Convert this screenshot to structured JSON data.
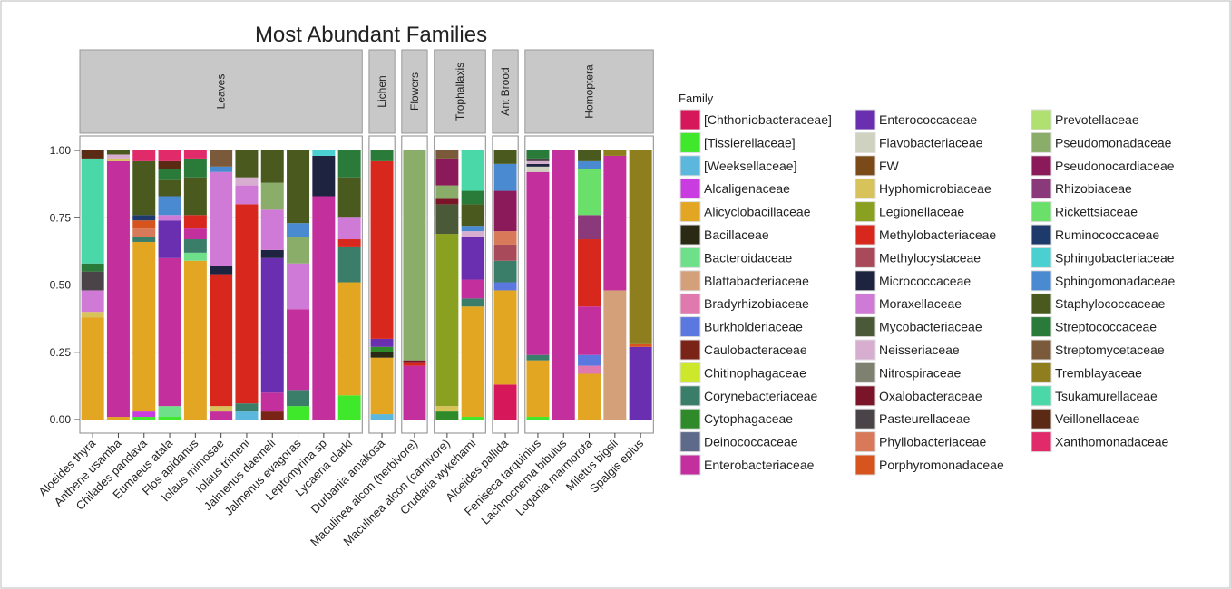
{
  "chart_data": {
    "type": "stacked-bar",
    "title": "Most Abundant Families",
    "legend_title": "Family",
    "categories": [
      "Aloeides thyra",
      "Anthene usamba",
      "Chilades pandava",
      "Eumaeus atala",
      "Flos apidanus",
      "Iolaus mimosae",
      "Iolaus trimeni",
      "Jalmenus daemeli",
      "Jalmenus evagoras",
      "Leptomyrina sp",
      "Lycaena clarki",
      "Durbania amakosa",
      "Maculinea alcon (herbivore)",
      "Maculinea alcon (carnivore)",
      "Crudaria wykehami",
      "Aloeides pallida",
      "Feniseca tarquinius",
      "Lachnocnema bibulus",
      "Logania marmorota",
      "Miletus bigsii",
      "Spalgis epius"
    ],
    "facets": [
      "Leaves",
      "Leaves",
      "Leaves",
      "Leaves",
      "Leaves",
      "Leaves",
      "Leaves",
      "Leaves",
      "Leaves",
      "Leaves",
      "Leaves",
      "Lichen",
      "Flowers",
      "Trophallaxis",
      "Trophallaxis",
      "Ant Brood",
      "Homoptera",
      "Homoptera",
      "Homoptera",
      "Homoptera",
      "Homoptera"
    ],
    "ylim": [
      0,
      1
    ],
    "yticks": [
      {
        "value": 0,
        "label": "0.00"
      },
      {
        "value": 0.25,
        "label": "0.25"
      },
      {
        "value": 0.5,
        "label": "0.50"
      },
      {
        "value": 0.75,
        "label": "0.75"
      },
      {
        "value": 1,
        "label": "1.00"
      }
    ],
    "grid": true,
    "series": [
      {
        "name": "[Chthoniobacteraceae]",
        "color": "#d6185a",
        "values": [
          0,
          0,
          0,
          0,
          0,
          0,
          0,
          0,
          0,
          0,
          0,
          0,
          0,
          0,
          0,
          0.13,
          0,
          0,
          0,
          0,
          0
        ]
      },
      {
        "name": "[Tissierellaceae]",
        "color": "#3fe82a",
        "values": [
          0,
          0,
          0.01,
          0.01,
          0,
          0,
          0,
          0,
          0.05,
          0,
          0.09,
          0,
          0,
          0,
          0.01,
          0,
          0.01,
          0,
          0,
          0,
          0
        ]
      },
      {
        "name": "[Weeksellaceae]",
        "color": "#5bb8dc",
        "values": [
          0,
          0,
          0,
          0,
          0,
          0,
          0.03,
          0,
          0,
          0,
          0,
          0.02,
          0,
          0,
          0,
          0,
          0,
          0,
          0,
          0,
          0
        ]
      },
      {
        "name": "Alcaligenaceae",
        "color": "#c93de0",
        "values": [
          0,
          0,
          0.02,
          0,
          0,
          0,
          0,
          0,
          0,
          0,
          0,
          0,
          0,
          0,
          0,
          0,
          0,
          0,
          0,
          0,
          0
        ]
      },
      {
        "name": "Alicyclobacillaceae",
        "color": "#e3a623",
        "values": [
          0.38,
          0.01,
          0.63,
          0,
          0.59,
          0,
          0,
          0,
          0,
          0,
          0.42,
          0.21,
          0,
          0,
          0.41,
          0.35,
          0.21,
          0,
          0.17,
          0,
          0
        ]
      },
      {
        "name": "Bacillaceae",
        "color": "#2a2a14",
        "values": [
          0,
          0,
          0,
          0,
          0,
          0,
          0,
          0,
          0,
          0,
          0,
          0.02,
          0,
          0,
          0,
          0,
          0,
          0,
          0,
          0,
          0
        ]
      },
      {
        "name": "Bacteroidaceae",
        "color": "#6fe08a",
        "values": [
          0,
          0,
          0,
          0.04,
          0.03,
          0,
          0,
          0,
          0,
          0,
          0,
          0,
          0,
          0,
          0,
          0,
          0,
          0,
          0,
          0,
          0
        ]
      },
      {
        "name": "Blattabacteriaceae",
        "color": "#d4a07a",
        "values": [
          0,
          0,
          0,
          0,
          0,
          0,
          0,
          0,
          0,
          0,
          0,
          0,
          0,
          0,
          0,
          0,
          0,
          0,
          0,
          0.48,
          0
        ]
      },
      {
        "name": "Bradyrhizobiaceae",
        "color": "#e07aae",
        "values": [
          0,
          0,
          0,
          0,
          0,
          0,
          0,
          0,
          0,
          0,
          0,
          0,
          0,
          0,
          0,
          0,
          0,
          0,
          0.03,
          0,
          0
        ]
      },
      {
        "name": "Burkholderiaceae",
        "color": "#5a78e0",
        "values": [
          0,
          0,
          0,
          0,
          0,
          0,
          0,
          0,
          0,
          0,
          0,
          0,
          0,
          0,
          0,
          0.03,
          0,
          0,
          0.04,
          0,
          0
        ]
      },
      {
        "name": "Caulobacteraceae",
        "color": "#7a2418",
        "values": [
          0,
          0,
          0,
          0,
          0,
          0,
          0,
          0.03,
          0,
          0,
          0,
          0,
          0,
          0,
          0,
          0,
          0,
          0,
          0,
          0,
          0
        ]
      },
      {
        "name": "Chitinophagaceae",
        "color": "#cde82a",
        "values": [
          0,
          0,
          0,
          0,
          0,
          0,
          0,
          0,
          0,
          0,
          0,
          0,
          0,
          0,
          0,
          0,
          0,
          0,
          0,
          0,
          0
        ]
      },
      {
        "name": "Corynebacteriaceae",
        "color": "#3a7e6a",
        "values": [
          0,
          0,
          0.02,
          0,
          0.05,
          0,
          0.03,
          0,
          0.06,
          0,
          0.13,
          0,
          0,
          0,
          0.03,
          0.08,
          0.02,
          0,
          0,
          0,
          0
        ]
      },
      {
        "name": "Cytophagaceae",
        "color": "#2f8a2a",
        "values": [
          0,
          0,
          0,
          0,
          0,
          0,
          0,
          0,
          0,
          0,
          0,
          0.02,
          0,
          0.03,
          0,
          0,
          0,
          0,
          0,
          0,
          0
        ]
      },
      {
        "name": "Deinococcaceae",
        "color": "#5e6a8a",
        "values": [
          0,
          0,
          0,
          0,
          0,
          0,
          0,
          0,
          0,
          0,
          0,
          0,
          0,
          0,
          0,
          0,
          0,
          0,
          0,
          0,
          0
        ]
      },
      {
        "name": "Enterobacteriaceae",
        "color": "#c42f9e",
        "values": [
          0,
          0.95,
          0,
          0.55,
          0.04,
          0.03,
          0,
          0.07,
          0.3,
          0.83,
          0,
          0,
          0.2,
          0,
          0.07,
          0,
          0.68,
          1,
          0.18,
          0.5,
          0
        ]
      },
      {
        "name": "Enterococcaceae",
        "color": "#6a2fb0",
        "values": [
          0,
          0,
          0,
          0.14,
          0,
          0,
          0,
          0.5,
          0,
          0,
          0,
          0.03,
          0,
          0,
          0.16,
          0,
          0,
          0,
          0,
          0,
          0.27
        ]
      },
      {
        "name": "Flavobacteriaceae",
        "color": "#d0d2c0",
        "values": [
          0,
          0,
          0,
          0,
          0,
          0,
          0,
          0,
          0,
          0,
          0,
          0,
          0,
          0,
          0,
          0,
          0.02,
          0,
          0,
          0,
          0
        ]
      },
      {
        "name": "FW",
        "color": "#7a4a18",
        "values": [
          0,
          0,
          0,
          0,
          0,
          0,
          0,
          0,
          0,
          0,
          0,
          0,
          0,
          0,
          0,
          0,
          0,
          0,
          0,
          0,
          0
        ]
      },
      {
        "name": "Hyphomicrobiaceae",
        "color": "#d8c25a",
        "values": [
          0.02,
          0.01,
          0,
          0,
          0,
          0.02,
          0,
          0,
          0,
          0,
          0,
          0,
          0,
          0.02,
          0,
          0,
          0,
          0,
          0,
          0,
          0
        ]
      },
      {
        "name": "Legionellaceae",
        "color": "#8aa020",
        "values": [
          0,
          0,
          0,
          0,
          0,
          0,
          0,
          0,
          0,
          0,
          0,
          0,
          0,
          0.64,
          0,
          0,
          0,
          0,
          0,
          0,
          0
        ]
      },
      {
        "name": "Methylobacteriaceae",
        "color": "#d8281e",
        "values": [
          0,
          0,
          0,
          0,
          0.05,
          0.49,
          0.74,
          0,
          0,
          0,
          0.03,
          0.66,
          0.01,
          0,
          0,
          0,
          0,
          0,
          0.25,
          0,
          0
        ]
      },
      {
        "name": "Methylocystaceae",
        "color": "#a84a5a",
        "values": [
          0,
          0,
          0,
          0,
          0,
          0,
          0,
          0,
          0,
          0,
          0,
          0,
          0,
          0,
          0,
          0.06,
          0,
          0,
          0,
          0,
          0
        ]
      },
      {
        "name": "Micrococcaceae",
        "color": "#1e2440",
        "values": [
          0,
          0,
          0,
          0,
          0,
          0.03,
          0,
          0.03,
          0,
          0.15,
          0,
          0,
          0,
          0,
          0,
          0,
          0.01,
          0,
          0,
          0,
          0
        ]
      },
      {
        "name": "Moraxellaceae",
        "color": "#d07ad8",
        "values": [
          0.08,
          0,
          0,
          0.02,
          0,
          0.35,
          0.07,
          0.15,
          0.17,
          0,
          0.08,
          0,
          0,
          0,
          0,
          0,
          0,
          0,
          0,
          0,
          0
        ]
      },
      {
        "name": "Mycobacteriaceae",
        "color": "#4a5a38",
        "values": [
          0,
          0,
          0,
          0,
          0,
          0,
          0,
          0,
          0,
          0,
          0,
          0,
          0,
          0.11,
          0,
          0,
          0,
          0,
          0,
          0,
          0
        ]
      },
      {
        "name": "Neisseriaceae",
        "color": "#d8aed0",
        "values": [
          0,
          0.015,
          0,
          0,
          0,
          0,
          0.03,
          0,
          0,
          0,
          0,
          0,
          0,
          0,
          0.02,
          0,
          0.01,
          0,
          0,
          0,
          0
        ]
      },
      {
        "name": "Nitrospiraceae",
        "color": "#7e8070",
        "values": [
          0,
          0,
          0,
          0,
          0,
          0,
          0,
          0,
          0,
          0,
          0,
          0,
          0,
          0,
          0,
          0,
          0,
          0,
          0,
          0,
          0
        ]
      },
      {
        "name": "Oxalobacteraceae",
        "color": "#7a1428",
        "values": [
          0,
          0,
          0,
          0,
          0,
          0,
          0,
          0,
          0,
          0,
          0,
          0,
          0.01,
          0.02,
          0,
          0,
          0,
          0,
          0,
          0,
          0
        ]
      },
      {
        "name": "Pasteurellaceae",
        "color": "#4a4448",
        "values": [
          0.07,
          0,
          0,
          0,
          0,
          0,
          0,
          0,
          0,
          0,
          0,
          0,
          0,
          0,
          0,
          0,
          0.01,
          0,
          0,
          0,
          0
        ]
      },
      {
        "name": "Phyllobacteriaceae",
        "color": "#d87a5a",
        "values": [
          0,
          0,
          0.03,
          0,
          0,
          0,
          0,
          0,
          0,
          0,
          0,
          0,
          0,
          0,
          0,
          0.05,
          0,
          0,
          0,
          0,
          0
        ]
      },
      {
        "name": "Porphyromonadaceae",
        "color": "#d8541e",
        "values": [
          0,
          0,
          0.03,
          0,
          0,
          0,
          0,
          0,
          0,
          0,
          0,
          0,
          0,
          0,
          0,
          0,
          0,
          0,
          0,
          0,
          0.01
        ]
      },
      {
        "name": "Prevotellaceae",
        "color": "#b0e070",
        "values": [
          0,
          0,
          0,
          0,
          0,
          0,
          0,
          0,
          0,
          0,
          0,
          0,
          0,
          0,
          0,
          0,
          0,
          0,
          0,
          0,
          0
        ]
      },
      {
        "name": "Pseudomonadaceae",
        "color": "#8aae6a",
        "values": [
          0,
          0,
          0,
          0,
          0,
          0,
          0,
          0.1,
          0.1,
          0,
          0,
          0,
          0.78,
          0.05,
          0,
          0,
          0,
          0,
          0,
          0,
          0
        ]
      },
      {
        "name": "Pseudonocardiaceae",
        "color": "#8a1a5a",
        "values": [
          0,
          0,
          0,
          0,
          0,
          0,
          0,
          0,
          0,
          0,
          0,
          0,
          0,
          0.1,
          0,
          0.15,
          0,
          0,
          0,
          0,
          0
        ]
      },
      {
        "name": "Rhizobiaceae",
        "color": "#8a3a7a",
        "values": [
          0,
          0,
          0,
          0,
          0,
          0,
          0,
          0,
          0,
          0,
          0,
          0,
          0,
          0,
          0,
          0,
          0,
          0,
          0.09,
          0,
          0
        ]
      },
      {
        "name": "Rickettsiaceae",
        "color": "#6ae06a",
        "values": [
          0,
          0,
          0,
          0,
          0,
          0,
          0,
          0,
          0,
          0,
          0,
          0,
          0,
          0,
          0,
          0,
          0,
          0,
          0.17,
          0,
          0
        ]
      },
      {
        "name": "Ruminococcaceae",
        "color": "#1e3a6a",
        "values": [
          0,
          0,
          0.02,
          0,
          0,
          0,
          0,
          0,
          0,
          0,
          0,
          0,
          0,
          0,
          0,
          0,
          0,
          0,
          0,
          0,
          0
        ]
      },
      {
        "name": "Sphingobacteriaceae",
        "color": "#4ad0d0",
        "values": [
          0,
          0,
          0,
          0,
          0,
          0,
          0,
          0,
          0,
          0.02,
          0,
          0,
          0,
          0,
          0,
          0,
          0,
          0,
          0,
          0,
          0
        ]
      },
      {
        "name": "Sphingomonadaceae",
        "color": "#4a8ad0",
        "values": [
          0,
          0,
          0,
          0.07,
          0,
          0.02,
          0,
          0,
          0.05,
          0,
          0,
          0,
          0,
          0,
          0.02,
          0.1,
          0,
          0,
          0.03,
          0,
          0
        ]
      },
      {
        "name": "Staphylococcaceae",
        "color": "#4a5a1e",
        "values": [
          0,
          0.015,
          0.2,
          0.06,
          0.14,
          0,
          0.1,
          0.12,
          0.27,
          0,
          0.15,
          0,
          0,
          0,
          0.08,
          0.05,
          0,
          0,
          0.04,
          0,
          0
        ]
      },
      {
        "name": "Streptococcaceae",
        "color": "#2a7a3a",
        "values": [
          0.03,
          0,
          0,
          0.04,
          0.07,
          0,
          0,
          0,
          0,
          0,
          0.1,
          0.04,
          0,
          0,
          0.05,
          0,
          0.03,
          0,
          0,
          0,
          0
        ]
      },
      {
        "name": "Streptomycetaceae",
        "color": "#7a5a3a",
        "values": [
          0,
          0,
          0,
          0,
          0,
          0.06,
          0,
          0,
          0,
          0,
          0,
          0,
          0,
          0.03,
          0,
          0,
          0,
          0,
          0,
          0,
          0
        ]
      },
      {
        "name": "Tremblayaceae",
        "color": "#8e7e1e",
        "values": [
          0,
          0,
          0,
          0,
          0,
          0,
          0,
          0,
          0,
          0,
          0,
          0,
          0,
          0,
          0,
          0,
          0,
          0,
          0,
          0.02,
          0.72
        ]
      },
      {
        "name": "Tsukamurellaceae",
        "color": "#4ad8a8",
        "values": [
          0.39,
          0,
          0,
          0,
          0,
          0,
          0,
          0,
          0,
          0,
          0,
          0,
          0,
          0,
          0.15,
          0,
          0,
          0,
          0,
          0,
          0
        ]
      },
      {
        "name": "Veillonellaceae",
        "color": "#5a2a14",
        "values": [
          0.03,
          0,
          0,
          0.03,
          0,
          0,
          0,
          0,
          0,
          0,
          0,
          0,
          0,
          0,
          0,
          0,
          0,
          0,
          0,
          0,
          0
        ]
      },
      {
        "name": "Xanthomonadaceae",
        "color": "#e02a6a",
        "values": [
          0,
          0,
          0.04,
          0.04,
          0.03,
          0,
          0,
          0,
          0,
          0,
          0,
          0,
          0,
          0,
          0,
          0,
          0,
          0,
          0,
          0,
          0
        ]
      }
    ]
  }
}
